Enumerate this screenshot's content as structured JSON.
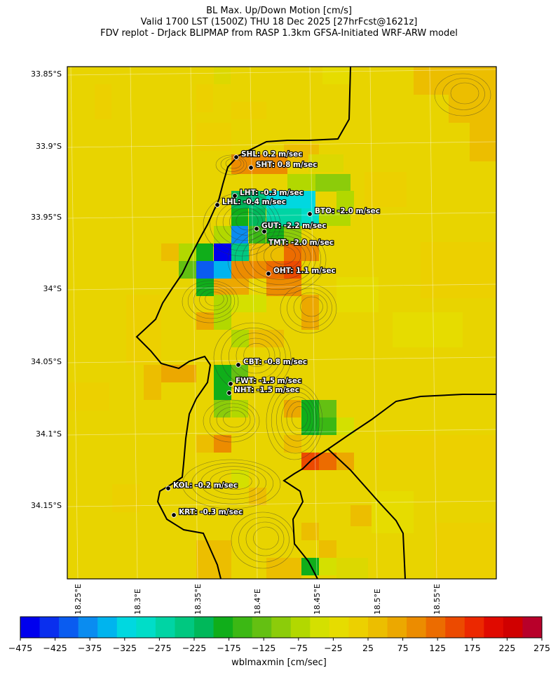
{
  "header": {
    "title_line1": "BL Max. Up/Down Motion [cm/s]",
    "title_line2": "Valid 1700 LST (1500Z) THU 18 Dec 2025 [27hrFcst@1621z]",
    "title_line3": "FDV replot - DrJack BLIPMAP from RASP 1.3km GFSA-Initiated WRF-ARW model"
  },
  "map": {
    "lat_labels": [
      "33.85°S",
      "33.9°S",
      "33.95°S",
      "34°S",
      "34.05°S",
      "34.1°S",
      "34.15°S"
    ],
    "lon_labels": [
      "18.25°E",
      "18.3°E",
      "18.35°E",
      "18.4°E",
      "18.45°E",
      "18.5°E",
      "18.55°E"
    ],
    "stations": [
      {
        "code": "SHL",
        "label": "SHL: 0.2 m/sec",
        "value": 0.2
      },
      {
        "code": "SHT",
        "label": "SHT: 0.8 m/sec",
        "value": 0.8
      },
      {
        "code": "LHT",
        "label": "LHT: -0.3 m/sec",
        "value": -0.3
      },
      {
        "code": "LHL",
        "label": "LHL: -0.4 m/sec",
        "value": -0.4
      },
      {
        "code": "BTO",
        "label": "BTO: -2.0 m/sec",
        "value": -2.0
      },
      {
        "code": "GUT",
        "label": "GUT: -2.2 m/sec",
        "value": -2.2
      },
      {
        "code": "TMT",
        "label": "TMT: -2.0 m/sec",
        "value": -2.0
      },
      {
        "code": "OHT",
        "label": "OHT: 1.1 m/sec",
        "value": 1.1
      },
      {
        "code": "CBT",
        "label": "CBT: -0.8 m/sec",
        "value": -0.8
      },
      {
        "code": "FWT",
        "label": "FWT: -1.5 m/sec",
        "value": -1.5
      },
      {
        "code": "NHT",
        "label": "NHT: -1.5 m/sec",
        "value": -1.5
      },
      {
        "code": "KOL",
        "label": "KOL: -0.2 m/sec",
        "value": -0.2
      },
      {
        "code": "KRT",
        "label": "KRT: -0.3 m/sec",
        "value": -0.3
      }
    ]
  },
  "colorbar": {
    "title": "wblmaxmin [cm/sec]",
    "tick_labels": [
      "−475",
      "−425",
      "−375",
      "−325",
      "−275",
      "−225",
      "−175",
      "−125",
      "−75",
      "−25",
      "25",
      "75",
      "125",
      "175",
      "225",
      "275"
    ],
    "colors": [
      "#0000ee",
      "#0a2fee",
      "#0a5cf0",
      "#0a8cf0",
      "#00b4ee",
      "#00d8e0",
      "#00ddc8",
      "#00d4a4",
      "#00c880",
      "#00b85a",
      "#10ae1a",
      "#3cb814",
      "#64c012",
      "#8ccc0a",
      "#b2d800",
      "#d4e000",
      "#e6dc00",
      "#ecd000",
      "#ecbe00",
      "#eca800",
      "#ec8c00",
      "#ec6c00",
      "#ec4a00",
      "#ec2800",
      "#e00a00",
      "#d00000",
      "#b8002a"
    ]
  }
}
